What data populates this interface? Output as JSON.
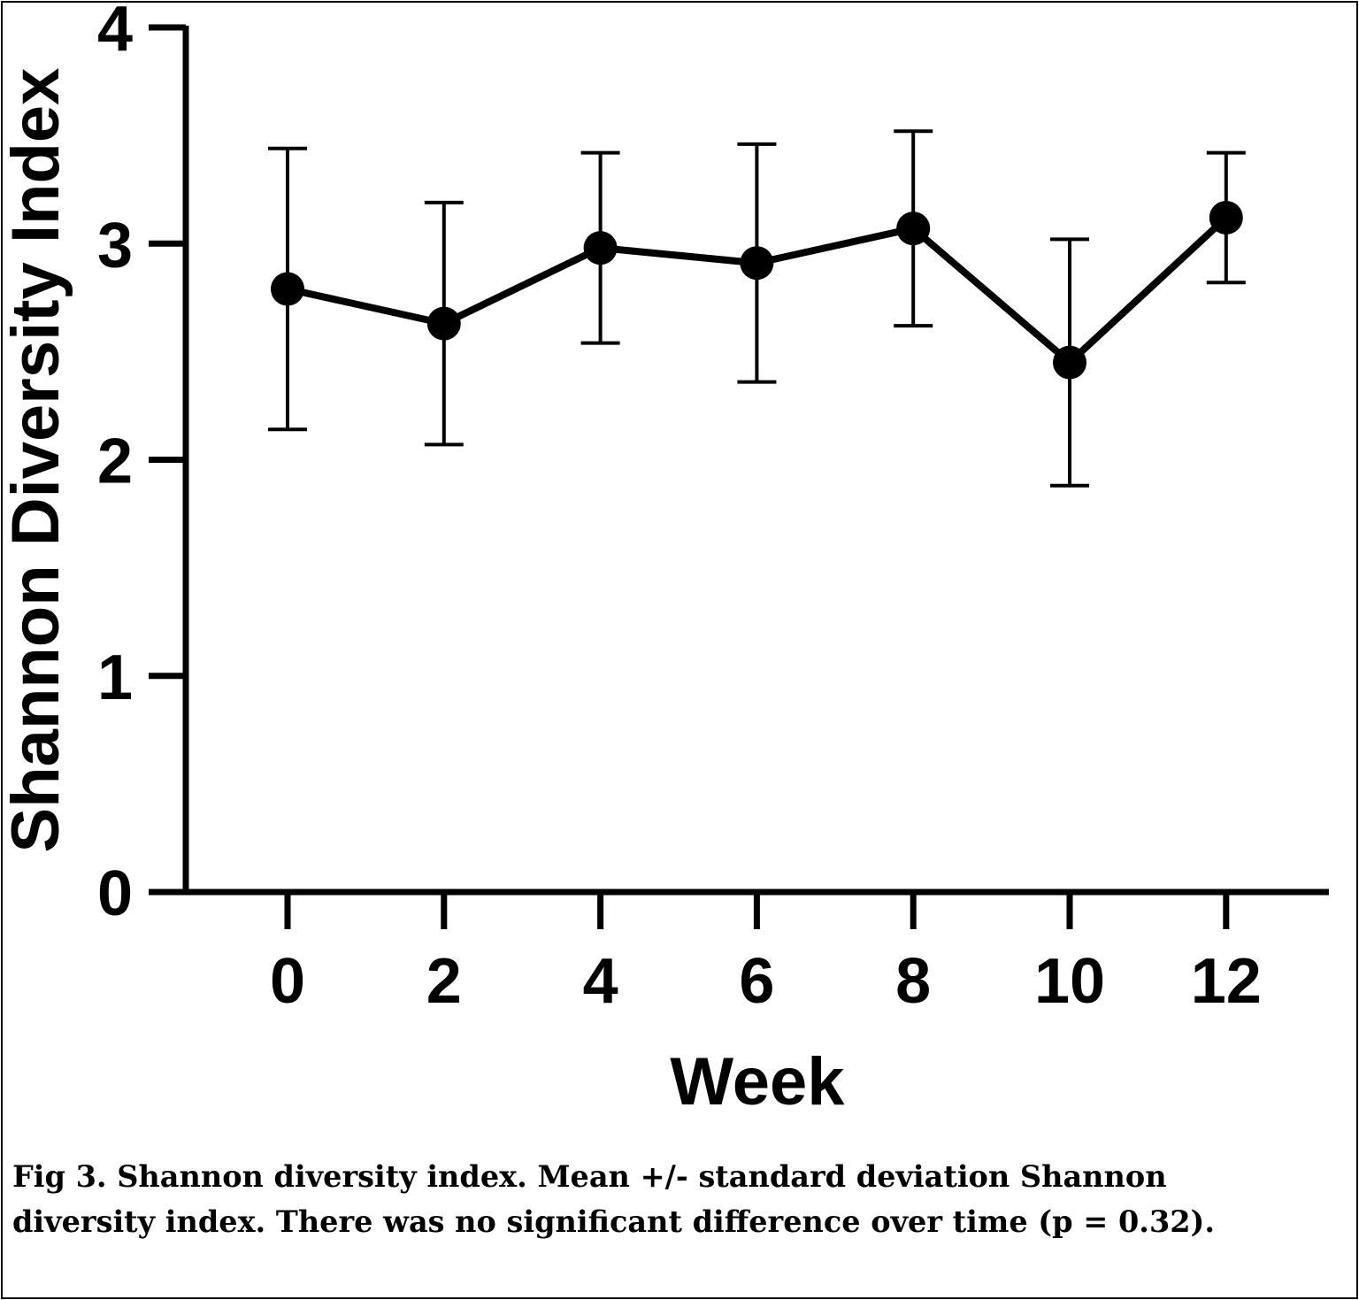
{
  "chart_data": {
    "type": "line",
    "xlabel": "Week",
    "ylabel": "Shannon Diversity Index",
    "x": [
      0,
      2,
      4,
      6,
      8,
      10,
      12
    ],
    "xticks": [
      "0",
      "2",
      "4",
      "6",
      "8",
      "10",
      "12"
    ],
    "yticks": [
      "0",
      "1",
      "2",
      "3",
      "4"
    ],
    "ylim": [
      0,
      4
    ],
    "grid": false,
    "series": [
      {
        "values": [
          2.79,
          2.63,
          2.98,
          2.91,
          3.07,
          2.45,
          3.12
        ],
        "sd": [
          0.65,
          0.56,
          0.44,
          0.55,
          0.45,
          0.57,
          0.3
        ],
        "color": "#000000"
      }
    ]
  },
  "caption": {
    "line1": "Fig 3. Shannon diversity index. Mean +/- standard deviation Shannon",
    "line2": "diversity index. There was no significant difference over time (p = 0.32)."
  }
}
